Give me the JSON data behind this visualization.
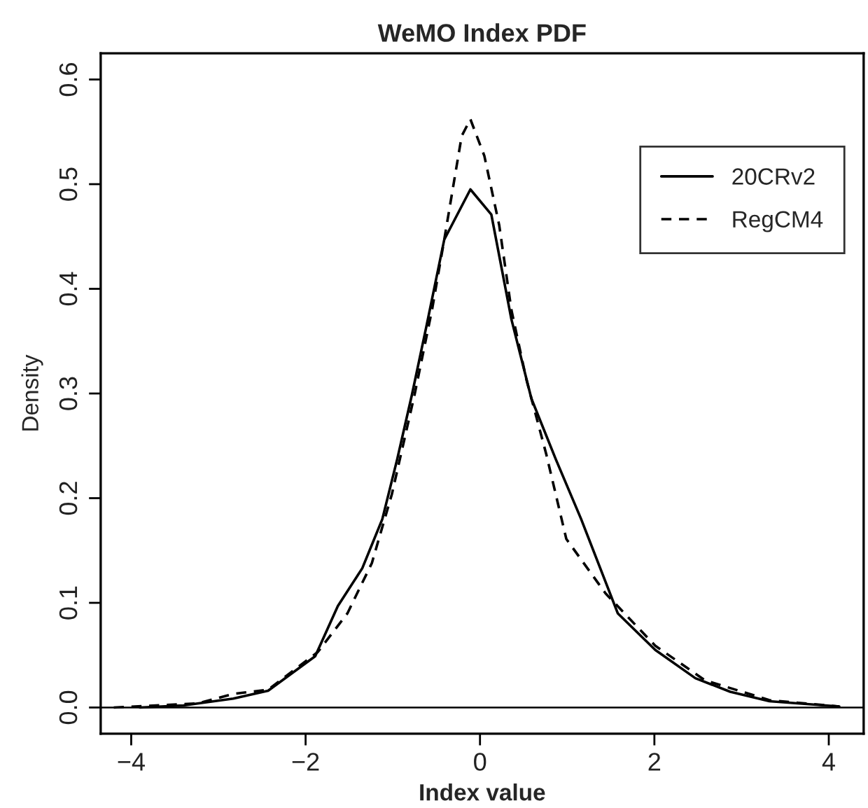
{
  "chart_data": {
    "type": "line",
    "title": "WeMO Index PDF",
    "xlabel": "Index value",
    "ylabel": "Density",
    "xlim": [
      -4.35,
      4.4
    ],
    "xticks": [
      {
        "value": -4,
        "label": "−4"
      },
      {
        "value": -2,
        "label": "−2"
      },
      0,
      2,
      4
    ],
    "ylim": [
      -0.025,
      0.625
    ],
    "yticks": [
      {
        "value": 0,
        "label": "0.0"
      },
      0.1,
      0.2,
      0.3,
      0.4,
      0.5,
      0.6
    ],
    "grid": false,
    "legend": "top right",
    "ref_lines": [
      {
        "axis": "y",
        "value": 0,
        "color": "#000000",
        "line_style": "solid"
      }
    ],
    "series": [
      {
        "name": "20CRv2",
        "color": "#000000",
        "line_style": "solid",
        "x": [
          -3.9,
          -3.4,
          -2.83,
          -2.43,
          -1.89,
          -1.63,
          -1.35,
          -1.12,
          -0.95,
          -0.78,
          -0.61,
          -0.41,
          -0.11,
          0.13,
          0.36,
          0.59,
          0.87,
          1.16,
          1.58,
          2.01,
          2.47,
          2.87,
          3.32,
          4.12
        ],
        "values": [
          0,
          0.002,
          0.0085,
          0.016,
          0.049,
          0.097,
          0.133,
          0.18,
          0.237,
          0.299,
          0.366,
          0.447,
          0.495,
          0.471,
          0.371,
          0.295,
          0.237,
          0.18,
          0.09,
          0.055,
          0.028,
          0.015,
          0.006,
          0.001
        ]
      },
      {
        "name": "RegCM4",
        "color": "#000000",
        "line_style": "dashed",
        "x": [
          -4.2,
          -3.23,
          -2.83,
          -2.43,
          -1.86,
          -1.52,
          -1.24,
          -1.01,
          -0.75,
          -0.55,
          -0.41,
          -0.21,
          -0.11,
          0.05,
          0.22,
          0.36,
          0.53,
          0.76,
          0.99,
          1.44,
          2.01,
          2.58,
          3.32,
          4.12
        ],
        "values": [
          0,
          0.004,
          0.013,
          0.017,
          0.053,
          0.09,
          0.138,
          0.204,
          0.299,
          0.38,
          0.447,
          0.546,
          0.562,
          0.527,
          0.461,
          0.38,
          0.314,
          0.242,
          0.161,
          0.109,
          0.059,
          0.026,
          0.007,
          0.001
        ]
      }
    ]
  }
}
